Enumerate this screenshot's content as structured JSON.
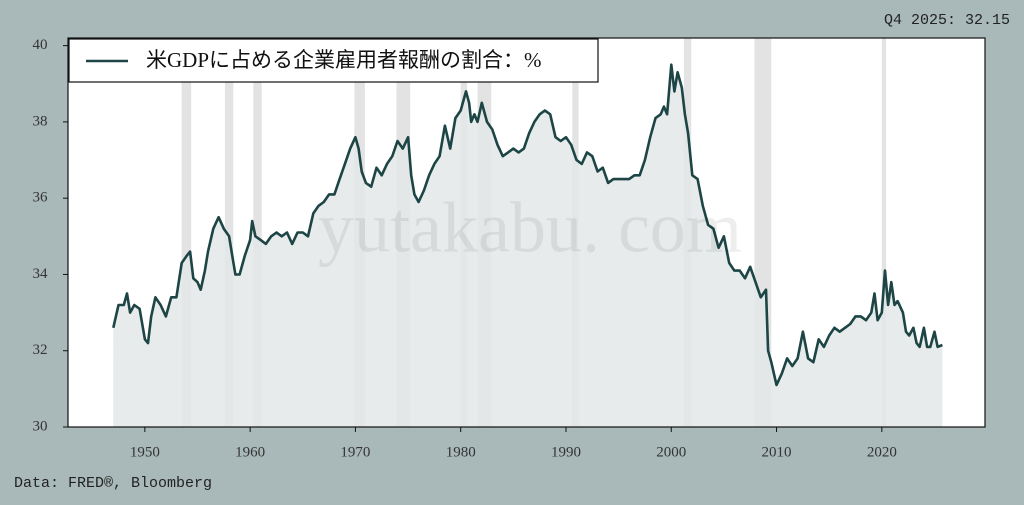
{
  "chart_data": {
    "type": "line",
    "legend_label": "米GDPに占める企業雇用者報酬の割合：%",
    "annotation": "Q4 2025: 32.15",
    "source": "Data: FRED®, Bloomberg",
    "watermark": "yutakabu. com",
    "xlim": [
      1942.7,
      2029.8
    ],
    "xticks": [
      1950,
      1960,
      1970,
      1980,
      1990,
      2000,
      2010,
      2020
    ],
    "ylim": [
      30,
      40.2
    ],
    "yticks": [
      30,
      32,
      34,
      36,
      38,
      40
    ],
    "legend": "upper-left",
    "fill_color": "#e3e8e8",
    "shade_color": "#e3e3e3",
    "shaded_periods": [
      [
        1953.5,
        1954.4
      ],
      [
        1957.6,
        1958.4
      ],
      [
        1960.3,
        1961.1
      ],
      [
        1969.9,
        1970.9
      ],
      [
        1973.9,
        1975.2
      ],
      [
        1980.0,
        1980.6
      ],
      [
        1981.6,
        1982.9
      ],
      [
        1990.6,
        1991.2
      ],
      [
        2001.2,
        2001.9
      ],
      [
        2007.9,
        2009.5
      ],
      [
        2020.0,
        2020.4
      ]
    ],
    "x": [
      1947.0,
      1947.5,
      1948.0,
      1948.3,
      1948.6,
      1949.0,
      1949.5,
      1950.0,
      1950.3,
      1950.6,
      1951.0,
      1951.5,
      1952.0,
      1952.5,
      1953.0,
      1953.5,
      1954.0,
      1954.3,
      1954.6,
      1955.0,
      1955.3,
      1955.7,
      1956.0,
      1956.5,
      1957.0,
      1957.5,
      1958.0,
      1958.3,
      1958.6,
      1959.0,
      1959.5,
      1960.0,
      1960.2,
      1960.5,
      1961.0,
      1961.5,
      1962.0,
      1962.5,
      1963.0,
      1963.5,
      1964.0,
      1964.5,
      1965.0,
      1965.5,
      1966.0,
      1966.5,
      1967.0,
      1967.5,
      1968.0,
      1968.5,
      1969.0,
      1969.5,
      1970.0,
      1970.3,
      1970.6,
      1971.0,
      1971.5,
      1972.0,
      1972.5,
      1973.0,
      1973.5,
      1974.0,
      1974.5,
      1975.0,
      1975.3,
      1975.6,
      1976.0,
      1976.5,
      1977.0,
      1977.5,
      1978.0,
      1978.5,
      1979.0,
      1979.5,
      1980.0,
      1980.5,
      1980.8,
      1981.0,
      1981.3,
      1981.6,
      1982.0,
      1982.5,
      1983.0,
      1983.5,
      1984.0,
      1984.5,
      1985.0,
      1985.5,
      1986.0,
      1986.5,
      1987.0,
      1987.5,
      1988.0,
      1988.5,
      1989.0,
      1989.5,
      1990.0,
      1990.5,
      1991.0,
      1991.5,
      1992.0,
      1992.5,
      1993.0,
      1993.5,
      1994.0,
      1994.5,
      1995.0,
      1995.5,
      1996.0,
      1996.5,
      1997.0,
      1997.5,
      1998.0,
      1998.5,
      1999.0,
      1999.3,
      1999.6,
      2000.0,
      2000.3,
      2000.6,
      2001.0,
      2001.3,
      2001.6,
      2002.0,
      2002.5,
      2003.0,
      2003.5,
      2004.0,
      2004.5,
      2005.0,
      2005.5,
      2006.0,
      2006.5,
      2007.0,
      2007.5,
      2008.0,
      2008.5,
      2009.0,
      2009.2,
      2009.5,
      2010.0,
      2010.5,
      2011.0,
      2011.5,
      2012.0,
      2012.5,
      2013.0,
      2013.5,
      2014.0,
      2014.5,
      2015.0,
      2015.5,
      2016.0,
      2016.5,
      2017.0,
      2017.5,
      2018.0,
      2018.5,
      2019.0,
      2019.3,
      2019.6,
      2020.0,
      2020.3,
      2020.6,
      2020.9,
      2021.2,
      2021.5,
      2022.0,
      2022.3,
      2022.6,
      2023.0,
      2023.3,
      2023.6,
      2024.0,
      2024.3,
      2024.6,
      2025.0,
      2025.3,
      2025.75
    ],
    "series": [
      {
        "color": "#1d4545",
        "values": [
          32.6,
          33.2,
          33.2,
          33.5,
          33.0,
          33.2,
          33.1,
          32.3,
          32.2,
          32.9,
          33.4,
          33.2,
          32.9,
          33.4,
          33.4,
          34.3,
          34.5,
          34.6,
          33.9,
          33.8,
          33.6,
          34.1,
          34.6,
          35.2,
          35.5,
          35.2,
          35.0,
          34.5,
          34.0,
          34.0,
          34.5,
          34.9,
          35.4,
          35.0,
          34.9,
          34.8,
          35.0,
          35.1,
          35.0,
          35.1,
          34.8,
          35.1,
          35.1,
          35.0,
          35.6,
          35.8,
          35.9,
          36.1,
          36.1,
          36.5,
          36.9,
          37.3,
          37.6,
          37.3,
          36.7,
          36.4,
          36.3,
          36.8,
          36.6,
          36.9,
          37.1,
          37.5,
          37.3,
          37.6,
          36.6,
          36.1,
          35.9,
          36.2,
          36.6,
          36.9,
          37.1,
          37.9,
          37.3,
          38.1,
          38.3,
          38.8,
          38.5,
          38.0,
          38.2,
          38.0,
          38.5,
          38.0,
          37.8,
          37.4,
          37.1,
          37.2,
          37.3,
          37.2,
          37.3,
          37.7,
          38.0,
          38.2,
          38.3,
          38.2,
          37.6,
          37.5,
          37.6,
          37.4,
          37.0,
          36.9,
          37.2,
          37.1,
          36.7,
          36.8,
          36.4,
          36.5,
          36.5,
          36.5,
          36.5,
          36.6,
          36.6,
          37.0,
          37.6,
          38.1,
          38.2,
          38.4,
          38.2,
          39.5,
          38.8,
          39.3,
          38.9,
          38.2,
          37.7,
          36.6,
          36.5,
          35.8,
          35.3,
          35.2,
          34.7,
          35.0,
          34.3,
          34.1,
          34.1,
          33.9,
          34.2,
          33.8,
          33.4,
          33.6,
          32.0,
          31.7,
          31.1,
          31.4,
          31.8,
          31.6,
          31.8,
          32.5,
          31.8,
          31.7,
          32.3,
          32.1,
          32.4,
          32.6,
          32.5,
          32.6,
          32.7,
          32.9,
          32.9,
          32.8,
          33.0,
          33.5,
          32.8,
          33.0,
          34.1,
          33.2,
          33.8,
          33.2,
          33.3,
          33.0,
          32.5,
          32.4,
          32.6,
          32.2,
          32.1,
          32.6,
          32.1,
          32.1,
          32.5,
          32.1,
          32.15
        ]
      }
    ]
  }
}
